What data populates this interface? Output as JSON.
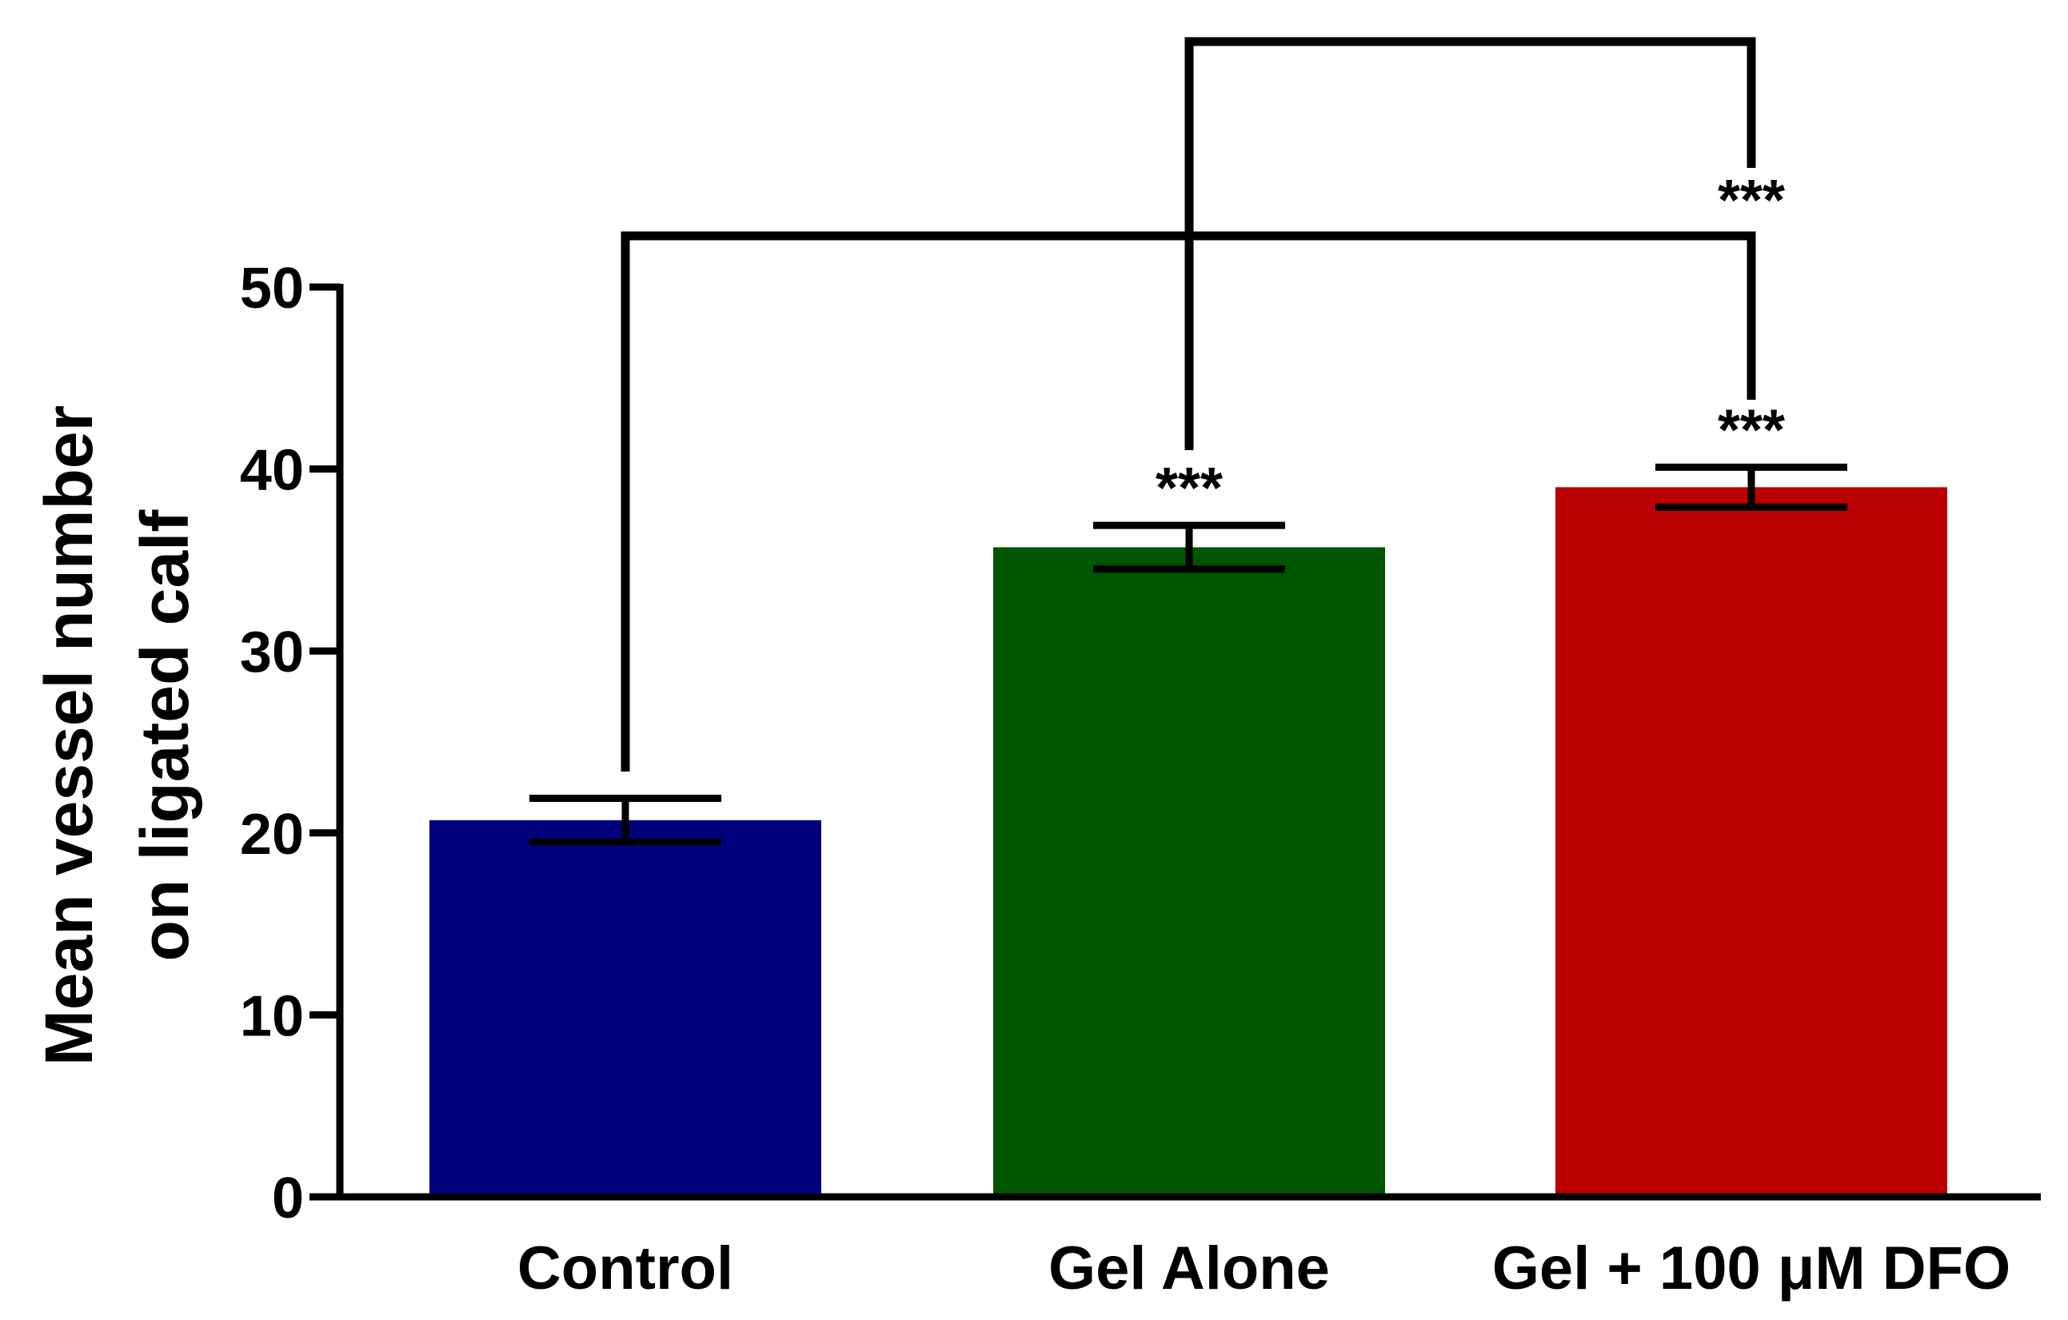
{
  "chart_data": {
    "type": "bar",
    "title": "",
    "xlabel": "",
    "ylabel_lines": [
      "Mean vessel number",
      "on ligated calf"
    ],
    "ylim": [
      0,
      50
    ],
    "yticks": [
      0,
      10,
      20,
      30,
      40,
      50
    ],
    "yticks_labels": [
      "0",
      "10",
      "20",
      "30",
      "40",
      "50"
    ],
    "categories": [
      "Control",
      "Gel Alone",
      "Gel + 100 μM DFO"
    ],
    "values": [
      20.7,
      35.7,
      39.0
    ],
    "errors": [
      1.2,
      1.2,
      1.1
    ],
    "colors": [
      "#00007f",
      "#005500",
      "#bb0000"
    ],
    "bar_significance": [
      "",
      "***",
      "***"
    ],
    "comparisons": [
      {
        "from": "Control",
        "to": "Gel + 100 μM DFO",
        "label": ""
      },
      {
        "from": "Gel Alone",
        "to": "Gel + 100 μM DFO",
        "label": "***"
      }
    ],
    "grid": false,
    "legend": "none"
  }
}
